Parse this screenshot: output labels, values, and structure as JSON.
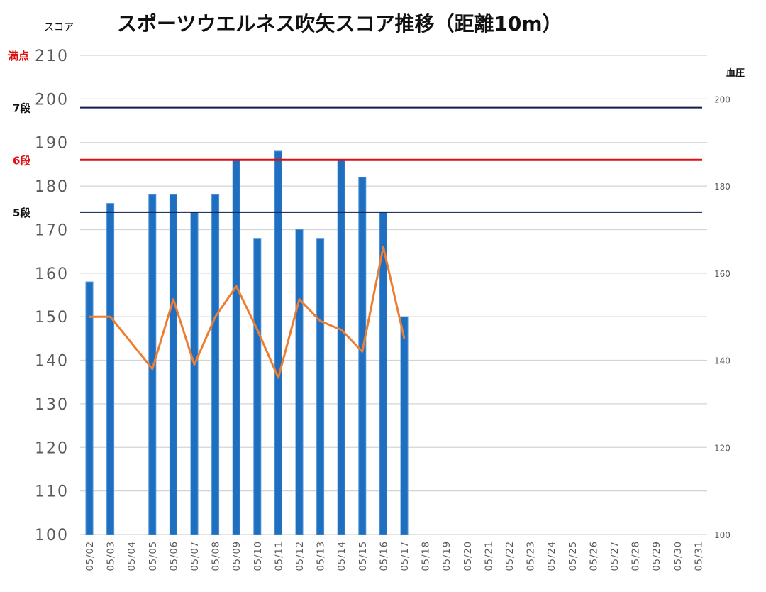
{
  "chart_data": {
    "type": "bar",
    "title": "スポーツウエルネス吹矢スコア推移（距離10m）",
    "ylabel_left": "スコア",
    "ylabel_right": "血圧",
    "categories": [
      "05/02",
      "05/03",
      "05/04",
      "05/05",
      "05/06",
      "05/07",
      "05/08",
      "05/09",
      "05/10",
      "05/11",
      "05/12",
      "05/13",
      "05/14",
      "05/15",
      "05/16",
      "05/17",
      "05/18",
      "05/19",
      "05/20",
      "05/21",
      "05/22",
      "05/23",
      "05/24",
      "05/25",
      "05/26",
      "05/27",
      "05/28",
      "05/29",
      "05/30",
      "05/31"
    ],
    "y_left": {
      "min": 100,
      "max": 210,
      "ticks": [
        100,
        110,
        120,
        130,
        140,
        150,
        160,
        170,
        180,
        190,
        200,
        210
      ]
    },
    "y_right": {
      "min": 100,
      "max": 210,
      "ticks": [
        100,
        120,
        140,
        160,
        180,
        200
      ]
    },
    "series": [
      {
        "kind": "bar",
        "axis": "left",
        "color": "#1f6fc0",
        "values": [
          158,
          176,
          null,
          178,
          178,
          174,
          178,
          186,
          168,
          188,
          170,
          168,
          186,
          182,
          174,
          150,
          null,
          null,
          null,
          null,
          null,
          null,
          null,
          null,
          null,
          null,
          null,
          null,
          null,
          null
        ]
      },
      {
        "kind": "line",
        "axis": "right",
        "color": "#ed7d31",
        "values": [
          150,
          150,
          null,
          138,
          154,
          139,
          150,
          157,
          147,
          136,
          154,
          149,
          147,
          142,
          166,
          145,
          null,
          null,
          null,
          null,
          null,
          null,
          null,
          null,
          null,
          null,
          null,
          null,
          null,
          null
        ]
      }
    ],
    "reference_lines": [
      {
        "label": "7段",
        "value": 198,
        "color": "#0d1b4d",
        "label_color": "#111111"
      },
      {
        "label": "6段",
        "value": 186,
        "color": "#e01010",
        "label_color": "#e01010"
      },
      {
        "label": "5段",
        "value": 174,
        "color": "#0d1b4d",
        "label_color": "#111111"
      }
    ],
    "annotations": [
      {
        "label": "満点",
        "value": 210,
        "color": "#e01010"
      }
    ],
    "grid": true
  }
}
